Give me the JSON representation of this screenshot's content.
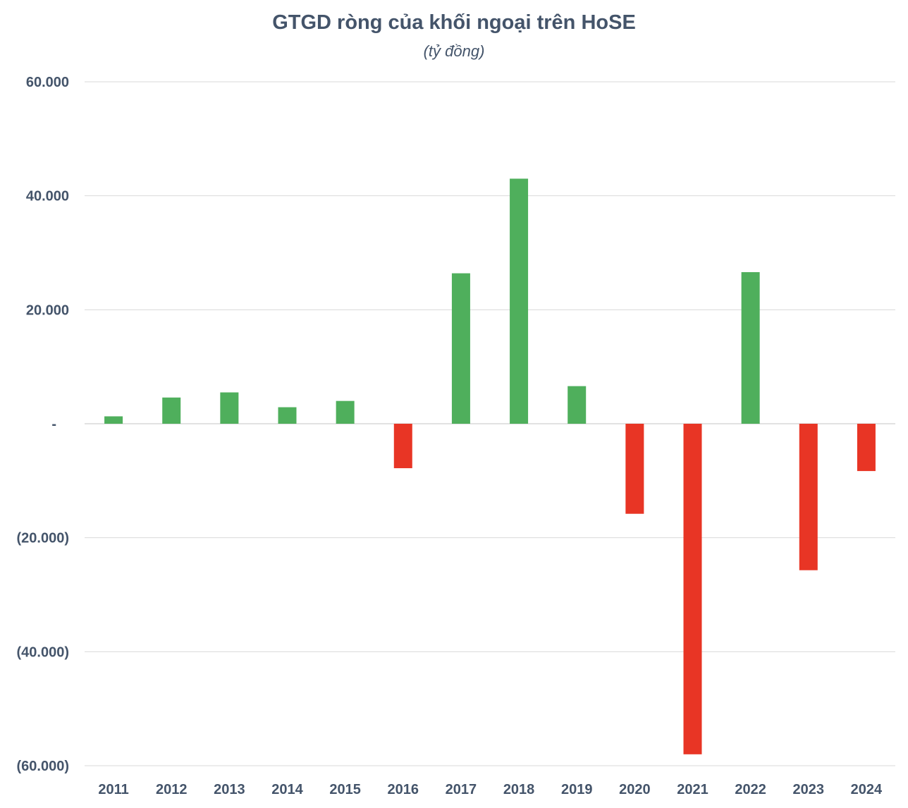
{
  "chart_data": {
    "type": "bar",
    "title": "GTGD ròng của khối ngoại trên HoSE",
    "subtitle": "(tỷ đồng)",
    "xlabel": "",
    "ylabel": "",
    "ylim": [
      -60000,
      60000
    ],
    "yticks": [
      60000,
      40000,
      20000,
      0,
      -20000,
      -40000,
      -60000
    ],
    "ytick_labels": [
      "60.000",
      "40.000",
      "20.000",
      "-",
      "(20.000)",
      "(40.000)",
      "(60.000)"
    ],
    "categories": [
      "2011",
      "2012",
      "2013",
      "2014",
      "2015",
      "2016",
      "2017",
      "2018",
      "2019",
      "2020",
      "2021",
      "2022",
      "2023",
      "2024"
    ],
    "values": [
      1300,
      4600,
      5500,
      2900,
      4000,
      -7800,
      26400,
      43000,
      6600,
      -15800,
      -58000,
      26600,
      -25700,
      -8300
    ],
    "grid": true,
    "legend": "none",
    "colors": {
      "positive": "#4faf5c",
      "negative": "#e83525",
      "grid": "#d9d9d9",
      "text": "#44546a"
    }
  }
}
